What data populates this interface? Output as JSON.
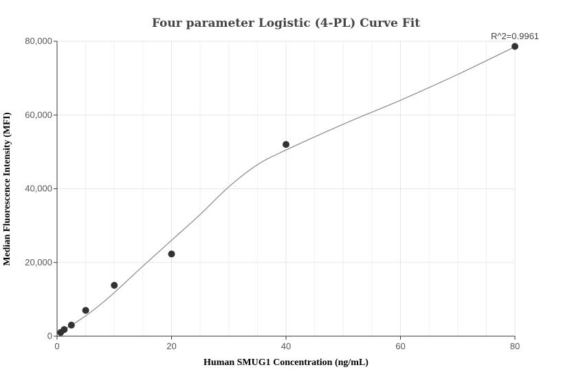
{
  "chart_data": {
    "type": "scatter",
    "title": "Four parameter Logistic (4-PL) Curve Fit",
    "xlabel": "Human SMUG1 Concentration (ng/mL)",
    "ylabel": "Median Fluorescence Intensity (MFI)",
    "xlim": [
      0,
      80
    ],
    "ylim": [
      0,
      80000
    ],
    "x_ticks": [
      0,
      20,
      40,
      60,
      80
    ],
    "y_ticks": [
      0,
      20000,
      40000,
      60000,
      80000
    ],
    "x_tick_labels": [
      "0",
      "20",
      "40",
      "60",
      "80"
    ],
    "y_tick_labels": [
      "0",
      "20,000",
      "40,000",
      "60,000",
      "80,000"
    ],
    "grid": true,
    "annotation": "R^2=0.9961",
    "points": {
      "x": [
        0.625,
        1.25,
        2.5,
        5,
        10,
        20,
        40,
        80
      ],
      "y": [
        1000,
        1800,
        3000,
        7000,
        13800,
        22300,
        52000,
        78600
      ]
    },
    "fit_curve": {
      "x": [
        0.625,
        2.5,
        5,
        7.5,
        10,
        15,
        20,
        25,
        30,
        35,
        40,
        50,
        60,
        70,
        80
      ],
      "y": [
        1200,
        3000,
        5500,
        8500,
        11800,
        19000,
        26000,
        33000,
        40500,
        46500,
        50500,
        57500,
        64000,
        71000,
        78500
      ]
    },
    "colors": {
      "point": "#333333",
      "curve": "#888888",
      "grid": "#e6e6e6",
      "minor_grid": "#f0f0f0",
      "axis": "#333333"
    }
  }
}
